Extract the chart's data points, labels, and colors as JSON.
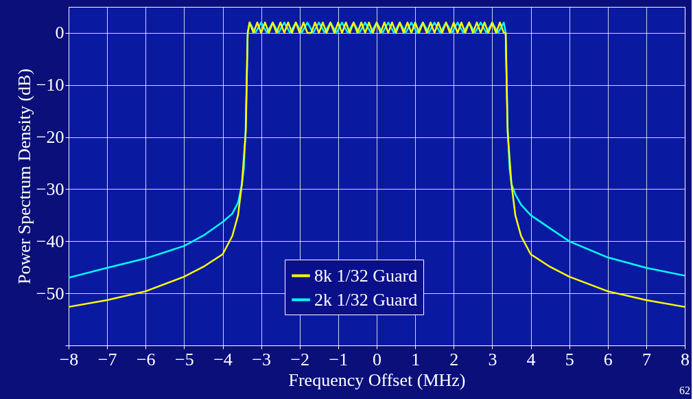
{
  "chart_data": {
    "type": "line",
    "xlabel": "Frequency Offset (MHz)",
    "ylabel": "Power Spectrum Density (dB)",
    "xlim": [
      -8,
      8
    ],
    "xticks": [
      -8,
      -7,
      -6,
      -5,
      -4,
      -3,
      -2,
      -1,
      0,
      1,
      2,
      3,
      4,
      5,
      6,
      7,
      8
    ],
    "ylim": [
      -60,
      5
    ],
    "yticks": [
      {
        "value": -60,
        "label": null
      },
      -50,
      -40,
      -30,
      -20,
      -10,
      0
    ],
    "grid": true,
    "legend": "bottom",
    "marker": "none",
    "line_style": "solid",
    "annotations": [
      "62"
    ],
    "series": [
      {
        "name": "8k 1/32 Guard",
        "color": "#ffff00",
        "x": [
          -8,
          -7,
          -6,
          -5,
          -4.5,
          -4,
          -3.75,
          -3.6,
          -3.5,
          -3.4,
          -3.35,
          -3.3,
          -3.2,
          -3.1,
          -3.0,
          -2.9,
          -2.8,
          -2.7,
          -2.6,
          -2.5,
          -2.4,
          -2.3,
          -2.2,
          -2.1,
          -2.0,
          -1.9,
          -1.8,
          -1.7,
          -1.6,
          -1.5,
          -1.4,
          -1.3,
          -1.2,
          -1.1,
          -1.0,
          -0.9,
          -0.8,
          -0.7,
          -0.6,
          -0.5,
          -0.4,
          -0.3,
          -0.2,
          -0.1,
          0.0,
          0.1,
          0.2,
          0.3,
          0.4,
          0.5,
          0.6,
          0.7,
          0.8,
          0.9,
          1.0,
          1.1,
          1.2,
          1.3,
          1.4,
          1.5,
          1.6,
          1.7,
          1.8,
          1.9,
          2.0,
          2.1,
          2.2,
          2.3,
          2.4,
          2.5,
          2.6,
          2.7,
          2.8,
          2.9,
          3.0,
          3.1,
          3.2,
          3.3,
          3.35,
          3.4,
          3.5,
          3.6,
          3.75,
          4,
          4.5,
          5,
          6,
          7,
          8
        ],
        "values": [
          -52.6,
          -51.3,
          -49.6,
          -46.8,
          -44.9,
          -42.5,
          -39,
          -35,
          -29,
          -19,
          0,
          2,
          0,
          2,
          0,
          2,
          0,
          2,
          0,
          2,
          0,
          2,
          0,
          2,
          0,
          2,
          0,
          0,
          2,
          0,
          2,
          0,
          2,
          0,
          2,
          0,
          2,
          0,
          2,
          0,
          2,
          0,
          2,
          0,
          2,
          0,
          2,
          0,
          2,
          0,
          2,
          0,
          2,
          0,
          2,
          0,
          2,
          0,
          2,
          0,
          2,
          0,
          2,
          0,
          2,
          0,
          2,
          0,
          2,
          0,
          2,
          0,
          2,
          0,
          2,
          0,
          2,
          0,
          0,
          -19,
          -29,
          -35,
          -39,
          -42.5,
          -44.9,
          -46.8,
          -49.6,
          -51.3,
          -52.6
        ]
      },
      {
        "name": "2k 1/32 Guard",
        "color": "#00ffff",
        "x": [
          -8,
          -7,
          -6,
          -5,
          -4.5,
          -4,
          -3.75,
          -3.6,
          -3.5,
          -3.45,
          -3.4,
          -3.35,
          -3.3,
          -3.15,
          -3.0,
          -2.85,
          -2.7,
          -2.55,
          -2.4,
          -2.25,
          -2.1,
          -1.95,
          -1.8,
          -1.65,
          -1.5,
          -1.35,
          -1.2,
          -1.05,
          -0.9,
          -0.75,
          -0.6,
          -0.45,
          -0.3,
          -0.15,
          0.0,
          0.15,
          0.3,
          0.45,
          0.6,
          0.75,
          0.9,
          1.05,
          1.2,
          1.35,
          1.5,
          1.65,
          1.8,
          1.95,
          2.1,
          2.25,
          2.4,
          2.55,
          2.7,
          2.85,
          3.0,
          3.15,
          3.3,
          3.35,
          3.4,
          3.45,
          3.5,
          3.6,
          3.75,
          4,
          4.5,
          5,
          6,
          7,
          8
        ],
        "values": [
          -47,
          -45.1,
          -43.3,
          -40.9,
          -38.9,
          -36.3,
          -34.7,
          -32.6,
          -29,
          -26,
          -18,
          0,
          2,
          0,
          2,
          0,
          2,
          0,
          2,
          0,
          2,
          0,
          2,
          0,
          2,
          0,
          2,
          0,
          2,
          0,
          2,
          0,
          2,
          0,
          2,
          0,
          2,
          0,
          2,
          0,
          2,
          0,
          2,
          0,
          2,
          0,
          2,
          0,
          2,
          0,
          2,
          0,
          2,
          0,
          2,
          0,
          2,
          0,
          -18,
          -26,
          -29,
          -31,
          -33,
          -35,
          -37.5,
          -40,
          -43.1,
          -45.1,
          -46.6
        ]
      }
    ]
  }
}
